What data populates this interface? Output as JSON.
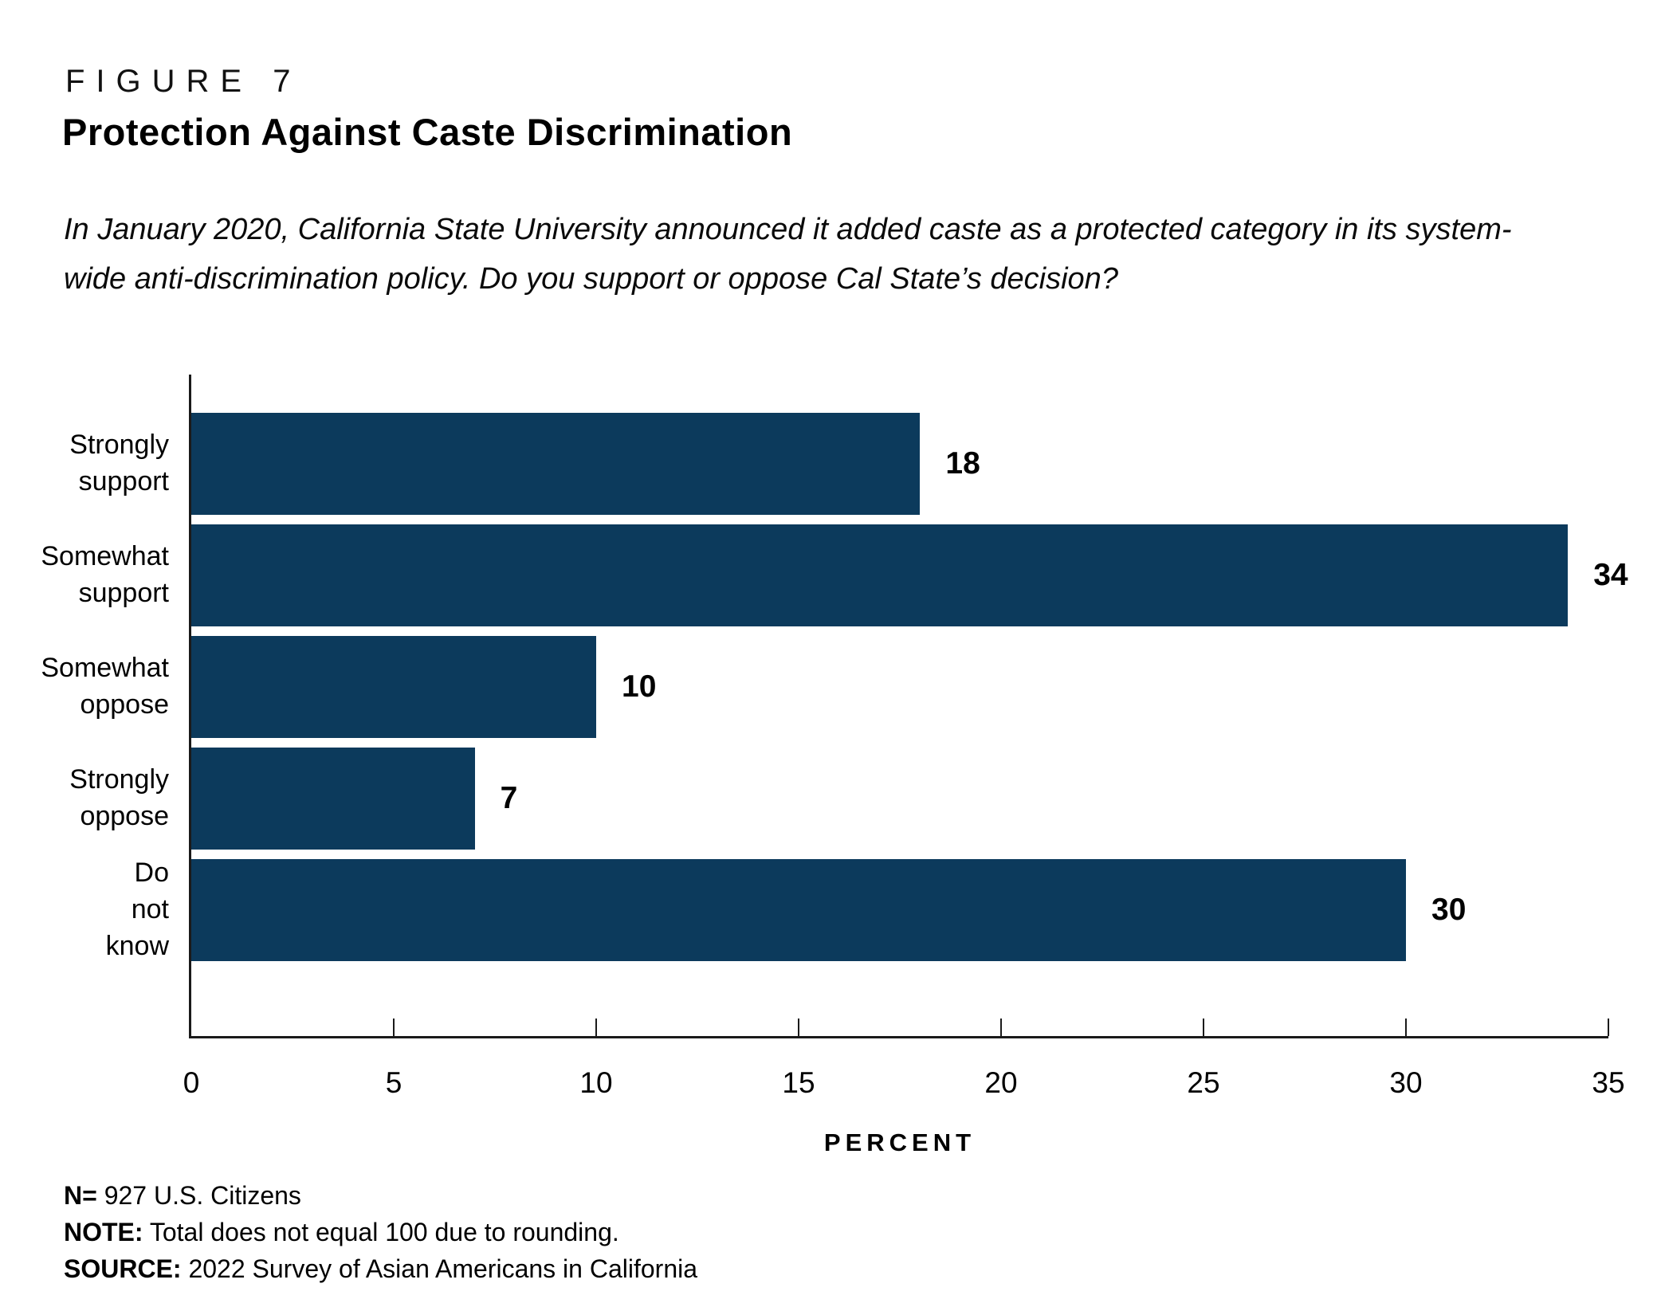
{
  "figure": {
    "label": "FIGURE 7",
    "title": "Protection Against Caste Discrimination",
    "subtitle": "In January 2020, California State University announced it added caste as a protected category in its system-\nwide anti-discrimination policy. Do you support or oppose Cal State’s decision?"
  },
  "chart_data": {
    "type": "bar",
    "orientation": "horizontal",
    "categories": [
      "Strongly\nsupport",
      "Somewhat\nsupport",
      "Somewhat\noppose",
      "Strongly\noppose",
      "Do not know"
    ],
    "values": [
      18,
      34,
      10,
      7,
      30
    ],
    "value_labels": [
      "18",
      "34",
      "10",
      "7",
      "30"
    ],
    "xlabel": "PERCENT",
    "xlim": [
      0,
      35
    ],
    "xticks": [
      0,
      5,
      10,
      15,
      20,
      25,
      30,
      35
    ],
    "bar_color": "#0c3a5c",
    "axis_color": "#1a1a1a",
    "grid": false,
    "legend": null
  },
  "footnotes": [
    {
      "prefix": "N=",
      "text": " 927 U.S. Citizens"
    },
    {
      "prefix": "NOTE:",
      "text": " Total does not equal 100 due to rounding."
    },
    {
      "prefix": "SOURCE:",
      "text": " 2022 Survey of Asian Americans in California"
    }
  ]
}
